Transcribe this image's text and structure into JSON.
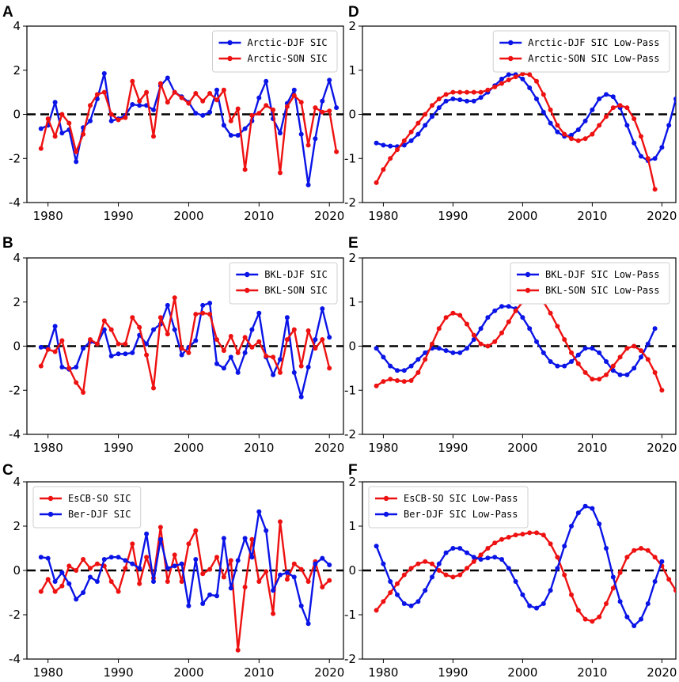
{
  "colors": {
    "blue": "#0a14e6",
    "red": "#ee1111",
    "zero_line": "#000000",
    "axes": "#000000"
  },
  "chart_data": [
    {
      "panel": "A",
      "type": "line",
      "xlim": [
        1977,
        2022
      ],
      "ylim": [
        -4,
        4
      ],
      "xticks": [
        1980,
        1990,
        2000,
        2010,
        2020
      ],
      "yticks": [
        -4,
        -2,
        0,
        2,
        4
      ],
      "legend_loc": "top-right",
      "series": [
        {
          "name": "Arctic-DJF SIC",
          "color": "blue",
          "x_start": 1979,
          "values": [
            -0.65,
            -0.5,
            0.55,
            -0.85,
            -0.7,
            -2.15,
            -0.6,
            -0.3,
            0.7,
            1.85,
            -0.3,
            -0.2,
            -0.05,
            0.45,
            0.4,
            0.4,
            0.2,
            1.3,
            1.65,
            1.0,
            0.8,
            0.55,
            0.05,
            -0.05,
            0.1,
            1.1,
            -0.5,
            -0.95,
            -0.95,
            -0.65,
            -0.3,
            0.75,
            1.5,
            -0.2,
            -0.85,
            0.5,
            1.1,
            -0.9,
            -3.2,
            -1.1,
            0.6,
            1.55,
            0.3
          ]
        },
        {
          "name": "Arctic-SON SIC",
          "color": "red",
          "x_start": 1979,
          "values": [
            -1.55,
            -0.2,
            -1.0,
            0.0,
            -0.4,
            -1.7,
            -0.9,
            0.4,
            0.9,
            1.0,
            0.0,
            -0.25,
            -0.15,
            1.5,
            0.6,
            1.0,
            -1.0,
            1.4,
            0.55,
            1.0,
            0.75,
            0.5,
            0.95,
            0.6,
            0.95,
            0.65,
            1.1,
            -0.3,
            0.25,
            -2.5,
            -0.05,
            0.05,
            0.4,
            0.2,
            -2.65,
            0.35,
            0.85,
            0.55,
            -1.4,
            0.3,
            0.1,
            0.15,
            -1.7
          ]
        }
      ]
    },
    {
      "panel": "B",
      "type": "line",
      "xlim": [
        1977,
        2022
      ],
      "ylim": [
        -4,
        4
      ],
      "xticks": [
        1980,
        1990,
        2000,
        2010,
        2020
      ],
      "yticks": [
        -4,
        -2,
        0,
        2,
        4
      ],
      "legend_loc": "top-right",
      "series": [
        {
          "name": "BKL-DJF SIC",
          "color": "blue",
          "x_start": 1979,
          "values": [
            -0.05,
            -0.1,
            0.9,
            -0.95,
            -1.05,
            -0.95,
            -0.1,
            0.2,
            0.1,
            0.75,
            -0.45,
            -0.35,
            -0.35,
            -0.3,
            0.5,
            0.1,
            0.75,
            1.0,
            1.85,
            0.75,
            -0.4,
            -0.05,
            0.25,
            1.85,
            1.95,
            -0.8,
            -1.0,
            -0.5,
            -1.2,
            -0.3,
            0.75,
            1.5,
            -0.5,
            -1.3,
            -0.6,
            1.3,
            -1.2,
            -2.3,
            -0.95,
            0.3,
            1.7,
            0.4
          ]
        },
        {
          "name": "BKL-SON SIC",
          "color": "red",
          "x_start": 1979,
          "values": [
            -0.9,
            -0.15,
            -0.25,
            0.25,
            -1.0,
            -1.65,
            -2.1,
            0.3,
            0.1,
            1.15,
            0.75,
            0.1,
            0.1,
            1.3,
            0.85,
            -0.4,
            -1.9,
            1.3,
            0.55,
            2.2,
            -0.1,
            -0.3,
            1.45,
            1.5,
            1.45,
            0.3,
            -0.2,
            0.45,
            -0.3,
            0.4,
            -0.05,
            0.2,
            -0.45,
            -0.5,
            -1.2,
            0.3,
            0.75,
            -0.9,
            0.7,
            -0.1,
            0.3,
            -1.0
          ]
        }
      ]
    },
    {
      "panel": "C",
      "type": "line",
      "xlim": [
        1977,
        2022
      ],
      "ylim": [
        -4,
        4
      ],
      "xticks": [
        1980,
        1990,
        2000,
        2010,
        2020
      ],
      "yticks": [
        -4,
        -2,
        0,
        2,
        4
      ],
      "legend_loc": "top-left",
      "series": [
        {
          "name": "EsCB-SO SIC",
          "color": "red",
          "x_start": 1979,
          "values": [
            -0.95,
            -0.4,
            -0.95,
            -0.7,
            0.2,
            0.0,
            0.5,
            0.1,
            0.3,
            0.2,
            -0.5,
            -0.95,
            0.1,
            1.2,
            -0.6,
            0.6,
            -0.35,
            1.95,
            -0.5,
            0.7,
            -0.5,
            1.2,
            1.8,
            -0.15,
            0.05,
            0.6,
            -0.3,
            0.45,
            -3.6,
            -0.75,
            1.4,
            -0.5,
            -0.05,
            -1.95,
            2.2,
            -0.4,
            0.3,
            0.05,
            -0.5,
            0.4,
            -0.75,
            -0.45
          ]
        },
        {
          "name": "Ber-DJF SIC",
          "color": "blue",
          "x_start": 1979,
          "values": [
            0.6,
            0.55,
            -0.5,
            -0.1,
            -0.6,
            -1.3,
            -1.0,
            -0.3,
            -0.5,
            0.5,
            0.6,
            0.6,
            0.45,
            0.3,
            0.1,
            1.65,
            -0.5,
            1.4,
            0.1,
            0.2,
            0.3,
            -1.6,
            0.5,
            -1.5,
            -1.1,
            -1.15,
            1.45,
            -0.8,
            0.45,
            1.45,
            0.6,
            2.65,
            1.8,
            -0.9,
            -0.2,
            -0.1,
            -0.3,
            -1.6,
            -2.4,
            0.3,
            0.55,
            0.25
          ]
        }
      ]
    },
    {
      "panel": "D",
      "type": "line",
      "xlim": [
        1977,
        2022
      ],
      "ylim": [
        -2,
        2
      ],
      "xticks": [
        1980,
        1990,
        2000,
        2010,
        2020
      ],
      "yticks": [
        -2,
        -1,
        0,
        1,
        2
      ],
      "legend_loc": "top-right",
      "series": [
        {
          "name": "Arctic-DJF SIC Low-Pass",
          "color": "blue",
          "x_start": 1979,
          "values": [
            -0.65,
            -0.7,
            -0.72,
            -0.73,
            -0.7,
            -0.6,
            -0.45,
            -0.25,
            -0.05,
            0.15,
            0.3,
            0.35,
            0.33,
            0.3,
            0.3,
            0.38,
            0.5,
            0.65,
            0.8,
            0.9,
            0.9,
            0.8,
            0.6,
            0.35,
            0.05,
            -0.2,
            -0.4,
            -0.5,
            -0.47,
            -0.35,
            -0.15,
            0.1,
            0.35,
            0.45,
            0.4,
            0.15,
            -0.25,
            -0.65,
            -0.95,
            -1.05,
            -1.0,
            -0.75,
            -0.25,
            0.35
          ]
        },
        {
          "name": "Arctic-SON SIC Low-Pass",
          "color": "red",
          "x_start": 1979,
          "values": [
            -1.55,
            -1.25,
            -1.0,
            -0.8,
            -0.6,
            -0.4,
            -0.2,
            0.0,
            0.2,
            0.35,
            0.45,
            0.5,
            0.5,
            0.5,
            0.5,
            0.5,
            0.55,
            0.62,
            0.7,
            0.78,
            0.85,
            0.92,
            0.9,
            0.75,
            0.45,
            0.1,
            -0.25,
            -0.45,
            -0.55,
            -0.6,
            -0.55,
            -0.45,
            -0.25,
            -0.05,
            0.15,
            0.2,
            0.15,
            -0.1,
            -0.5,
            -1.0,
            -1.7
          ]
        }
      ]
    },
    {
      "panel": "E",
      "type": "line",
      "xlim": [
        1977,
        2022
      ],
      "ylim": [
        -2,
        2
      ],
      "xticks": [
        1980,
        1990,
        2000,
        2010,
        2020
      ],
      "yticks": [
        -2,
        -1,
        0,
        1,
        2
      ],
      "legend_loc": "top-right",
      "series": [
        {
          "name": "BKL-DJF SIC Low-Pass",
          "color": "blue",
          "x_start": 1979,
          "values": [
            -0.05,
            -0.25,
            -0.45,
            -0.55,
            -0.55,
            -0.45,
            -0.3,
            -0.15,
            -0.05,
            -0.05,
            -0.1,
            -0.15,
            -0.15,
            -0.05,
            0.15,
            0.4,
            0.65,
            0.8,
            0.9,
            0.9,
            0.85,
            0.65,
            0.4,
            0.1,
            -0.15,
            -0.35,
            -0.45,
            -0.45,
            -0.35,
            -0.2,
            -0.05,
            -0.05,
            -0.15,
            -0.35,
            -0.55,
            -0.65,
            -0.65,
            -0.5,
            -0.25,
            0.05,
            0.4
          ]
        },
        {
          "name": "BKL-SON SIC Low-Pass",
          "color": "red",
          "x_start": 1979,
          "values": [
            -0.9,
            -0.8,
            -0.75,
            -0.78,
            -0.8,
            -0.78,
            -0.6,
            -0.3,
            0.05,
            0.4,
            0.65,
            0.75,
            0.7,
            0.5,
            0.25,
            0.05,
            0.0,
            0.1,
            0.3,
            0.55,
            0.8,
            1.0,
            1.1,
            1.1,
            1.0,
            0.75,
            0.45,
            0.15,
            -0.15,
            -0.4,
            -0.6,
            -0.75,
            -0.75,
            -0.65,
            -0.45,
            -0.25,
            -0.05,
            0.0,
            -0.1,
            -0.3,
            -0.6,
            -1.0
          ]
        }
      ]
    },
    {
      "panel": "F",
      "type": "line",
      "xlim": [
        1977,
        2022
      ],
      "ylim": [
        -2,
        2
      ],
      "xticks": [
        1980,
        1990,
        2000,
        2010,
        2020
      ],
      "yticks": [
        -2,
        -1,
        0,
        1,
        2
      ],
      "legend_loc": "top-left",
      "series": [
        {
          "name": "EsCB-SO SIC Low-Pass",
          "color": "red",
          "x_start": 1979,
          "values": [
            -0.9,
            -0.7,
            -0.5,
            -0.3,
            -0.1,
            0.05,
            0.15,
            0.2,
            0.15,
            0.0,
            -0.1,
            -0.15,
            -0.1,
            0.05,
            0.2,
            0.35,
            0.5,
            0.62,
            0.7,
            0.75,
            0.8,
            0.82,
            0.85,
            0.85,
            0.8,
            0.6,
            0.3,
            -0.1,
            -0.55,
            -0.9,
            -1.1,
            -1.15,
            -1.05,
            -0.75,
            -0.4,
            -0.05,
            0.3,
            0.45,
            0.5,
            0.45,
            0.3,
            0.1,
            -0.2,
            -0.45
          ]
        },
        {
          "name": "Ber-DJF SIC Low-Pass",
          "color": "blue",
          "x_start": 1979,
          "values": [
            0.55,
            0.15,
            -0.25,
            -0.55,
            -0.75,
            -0.8,
            -0.7,
            -0.45,
            -0.15,
            0.15,
            0.4,
            0.5,
            0.5,
            0.4,
            0.3,
            0.25,
            0.28,
            0.3,
            0.25,
            0.05,
            -0.25,
            -0.55,
            -0.8,
            -0.85,
            -0.75,
            -0.45,
            0.05,
            0.55,
            1.0,
            1.3,
            1.45,
            1.4,
            1.05,
            0.5,
            -0.15,
            -0.7,
            -1.05,
            -1.25,
            -1.1,
            -0.75,
            -0.25,
            0.2
          ]
        }
      ]
    }
  ]
}
